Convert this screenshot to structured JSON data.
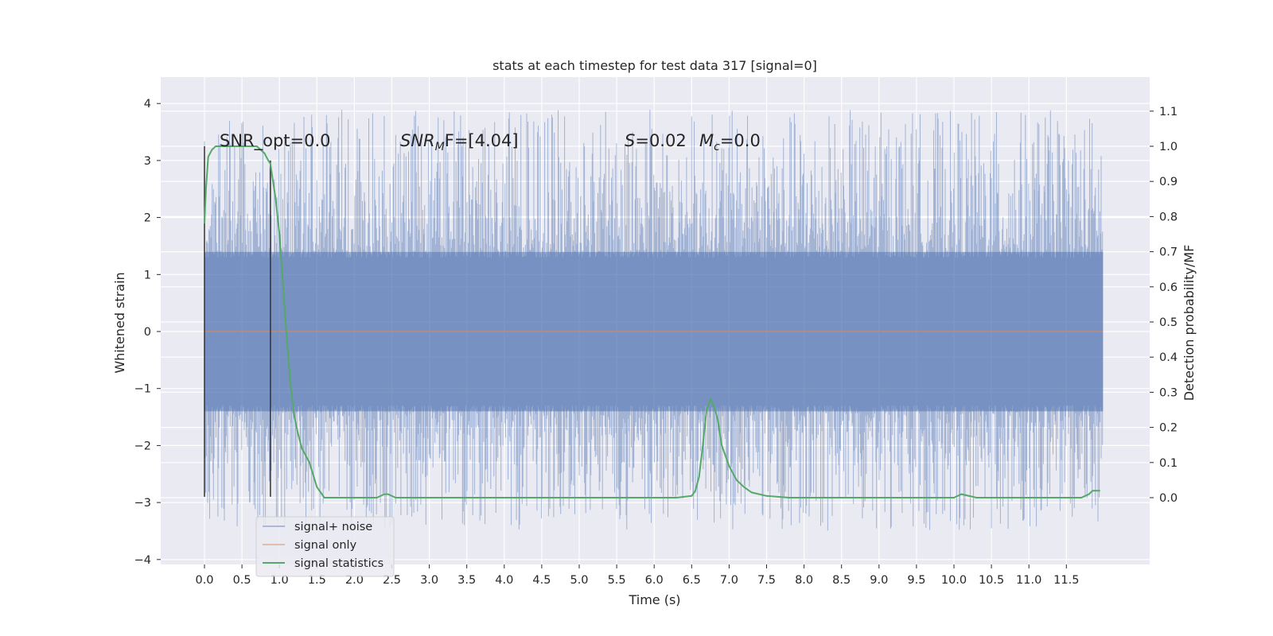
{
  "chart_data": {
    "type": "line",
    "title": "stats at each timestep for test data 317 [signal=0]",
    "xlabel": "Time (s)",
    "ylabel": "Whitened strain",
    "y2label": "Detection probability/MF",
    "xlim": [
      -0.6,
      12.6
    ],
    "ylim": [
      -4.1,
      4.4
    ],
    "y2lim": [
      -0.195,
      1.19
    ],
    "x_ticks": [
      "0.0",
      "0.5",
      "1.0",
      "1.5",
      "2.0",
      "2.5",
      "3.0",
      "3.5",
      "4.0",
      "4.5",
      "5.0",
      "5.5",
      "6.0",
      "6.5",
      "7.0",
      "7.5",
      "8.0",
      "8.5",
      "9.0",
      "9.5",
      "10.0",
      "10.5",
      "11.0",
      "11.5"
    ],
    "y_ticks": [
      "4",
      "3",
      "2",
      "1",
      "0",
      "−1",
      "−2",
      "−3",
      "−4"
    ],
    "y2_ticks": [
      "1.1",
      "1.0",
      "0.9",
      "0.8",
      "0.7",
      "0.6",
      "0.5",
      "0.4",
      "0.3",
      "0.2",
      "0.1",
      "0.0"
    ],
    "grid": true,
    "legend_position": "lower-left",
    "series": [
      {
        "name": "signal+ noise",
        "color": "#4c72b0",
        "axis": "left",
        "note_values": "dense noise spanning roughly -3.6 to 4.1 between t=0 and t=11.99"
      },
      {
        "name": "signal only",
        "color": "#dd8452",
        "axis": "left",
        "x": [
          0,
          11.99
        ],
        "y": [
          0,
          0
        ]
      },
      {
        "name": "signal statistics",
        "color": "#55a868",
        "axis": "right",
        "x": [
          0.0,
          0.02,
          0.05,
          0.1,
          0.15,
          0.25,
          0.4,
          0.6,
          0.7,
          0.75,
          0.8,
          0.85,
          0.88,
          0.9,
          0.95,
          1.0,
          1.05,
          1.1,
          1.15,
          1.2,
          1.25,
          1.3,
          1.4,
          1.5,
          1.6,
          1.8,
          2.0,
          2.2,
          2.3,
          2.4,
          2.45,
          2.55,
          2.8,
          3.0,
          3.5,
          4.0,
          4.5,
          5.0,
          5.5,
          6.0,
          6.3,
          6.5,
          6.55,
          6.6,
          6.65,
          6.7,
          6.75,
          6.8,
          6.85,
          6.9,
          7.0,
          7.1,
          7.2,
          7.3,
          7.5,
          7.8,
          8.0,
          9.0,
          9.5,
          9.8,
          10.0,
          10.1,
          10.3,
          10.5,
          10.8,
          11.0,
          11.5,
          11.7,
          11.8,
          11.85,
          11.9,
          11.95
        ],
        "y": [
          0.78,
          0.88,
          0.97,
          0.99,
          1.0,
          1.0,
          1.0,
          1.0,
          1.0,
          0.99,
          0.98,
          0.96,
          0.95,
          0.92,
          0.85,
          0.75,
          0.6,
          0.45,
          0.32,
          0.23,
          0.18,
          0.14,
          0.1,
          0.03,
          0.0,
          0.0,
          0.0,
          0.0,
          0.0,
          0.01,
          0.01,
          0.0,
          0.0,
          0.0,
          0.0,
          0.0,
          0.0,
          0.0,
          0.0,
          0.0,
          0.0,
          0.005,
          0.02,
          0.06,
          0.15,
          0.25,
          0.28,
          0.26,
          0.22,
          0.15,
          0.09,
          0.05,
          0.03,
          0.015,
          0.005,
          0.0,
          0.0,
          0.0,
          0.0,
          0.0,
          0.0,
          0.01,
          0.0,
          0.0,
          0.0,
          0.0,
          0.0,
          0.0,
          0.01,
          0.02,
          0.02,
          0.02
        ]
      },
      {
        "name": "",
        "color": "#333333",
        "axis": "left",
        "type": "vline",
        "x": [
          0.0,
          0.88
        ],
        "y_top": [
          3.25,
          3.0
        ],
        "y_bottom": [
          -2.9,
          -2.9
        ]
      }
    ],
    "annotations": [
      {
        "text": "SNR_opt=0.0"
      },
      {
        "base": "SNR",
        "sub": "M",
        "after": "F=[4.04]"
      },
      {
        "base": "S",
        "after": "=0.02"
      },
      {
        "base": "M",
        "sub": "c",
        "after": "=0.0"
      }
    ]
  }
}
